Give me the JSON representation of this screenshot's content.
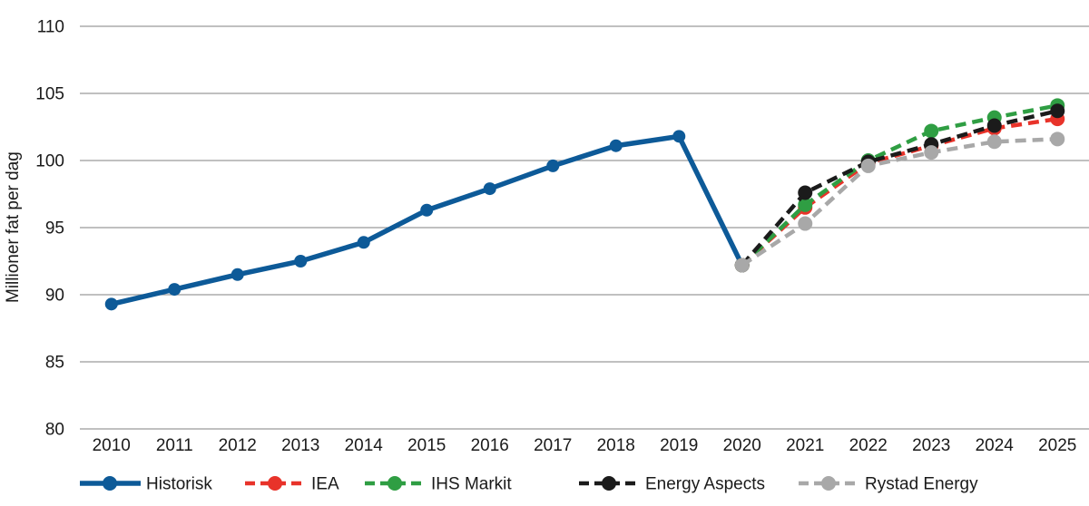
{
  "figure": {
    "background": "#FFFFFF",
    "text_color": "#1A1A1A",
    "grid_color": "#9A9A9A"
  },
  "chart_data": {
    "type": "line",
    "title": "",
    "xlabel": "",
    "ylabel": "Millioner fat per dag",
    "ylim": [
      80,
      110
    ],
    "yticks": [
      80,
      85,
      90,
      95,
      100,
      105,
      110
    ],
    "categories": [
      "2010",
      "2011",
      "2012",
      "2013",
      "2014",
      "2015",
      "2016",
      "2017",
      "2018",
      "2019",
      "2020",
      "2021",
      "2022",
      "2023",
      "2024",
      "2025"
    ],
    "grid": true,
    "legend_position": "bottom",
    "series": [
      {
        "name": "Historisk",
        "color": "#0D5A98",
        "line_style": "solid",
        "years": [
          2010,
          2011,
          2012,
          2013,
          2014,
          2015,
          2016,
          2017,
          2018,
          2019,
          2020
        ],
        "values": [
          89.3,
          90.4,
          91.5,
          92.5,
          93.9,
          96.3,
          97.9,
          99.6,
          101.1,
          101.8,
          92.2
        ]
      },
      {
        "name": "IEA",
        "color": "#E8332A",
        "line_style": "dashed",
        "years": [
          2020,
          2021,
          2022,
          2023,
          2024,
          2025
        ],
        "values": [
          92.2,
          96.5,
          99.8,
          101.1,
          102.4,
          103.1
        ]
      },
      {
        "name": "IHS Markit",
        "color": "#2F9E43",
        "line_style": "dashed",
        "years": [
          2020,
          2021,
          2022,
          2023,
          2024,
          2025
        ],
        "values": [
          92.2,
          96.7,
          100.0,
          102.2,
          103.2,
          104.1
        ]
      },
      {
        "name": "Energy Aspects",
        "color": "#1B1B1B",
        "line_style": "dashed",
        "years": [
          2020,
          2021,
          2022,
          2023,
          2024,
          2025
        ],
        "values": [
          92.2,
          97.6,
          99.9,
          101.2,
          102.6,
          103.7
        ]
      },
      {
        "name": "Rystad Energy",
        "color": "#A8A8A8",
        "line_style": "dashed",
        "years": [
          2020,
          2021,
          2022,
          2023,
          2024,
          2025
        ],
        "values": [
          92.2,
          95.3,
          99.6,
          100.6,
          101.4,
          101.6
        ]
      }
    ]
  }
}
